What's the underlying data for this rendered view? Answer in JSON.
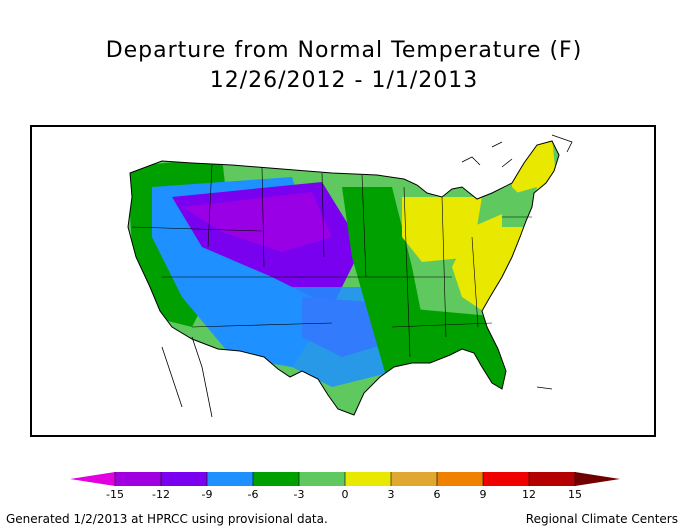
{
  "title": "Departure from Normal Temperature (F)",
  "subtitle": "12/26/2012 - 1/1/2013",
  "footer_left": "Generated 1/2/2013 at HPRCC using provisional data.",
  "footer_right": "Regional Climate Centers",
  "legend": {
    "ticks": [
      "-15",
      "-12",
      "-9",
      "-6",
      "-3",
      "0",
      "3",
      "6",
      "9",
      "12",
      "15"
    ],
    "colors": [
      "#e000e0",
      "#a000e0",
      "#7a00f0",
      "#1e90ff",
      "#00a000",
      "#5fc85f",
      "#e8e800",
      "#e0a830",
      "#f08000",
      "#f00000",
      "#b40000",
      "#700000"
    ]
  },
  "map_colors": {
    "purple": "#9a00e6",
    "violet": "#7a00f0",
    "blue": "#1e90ff",
    "dark_green": "#00a000",
    "green": "#5fc85f",
    "yellow": "#e8e800"
  }
}
